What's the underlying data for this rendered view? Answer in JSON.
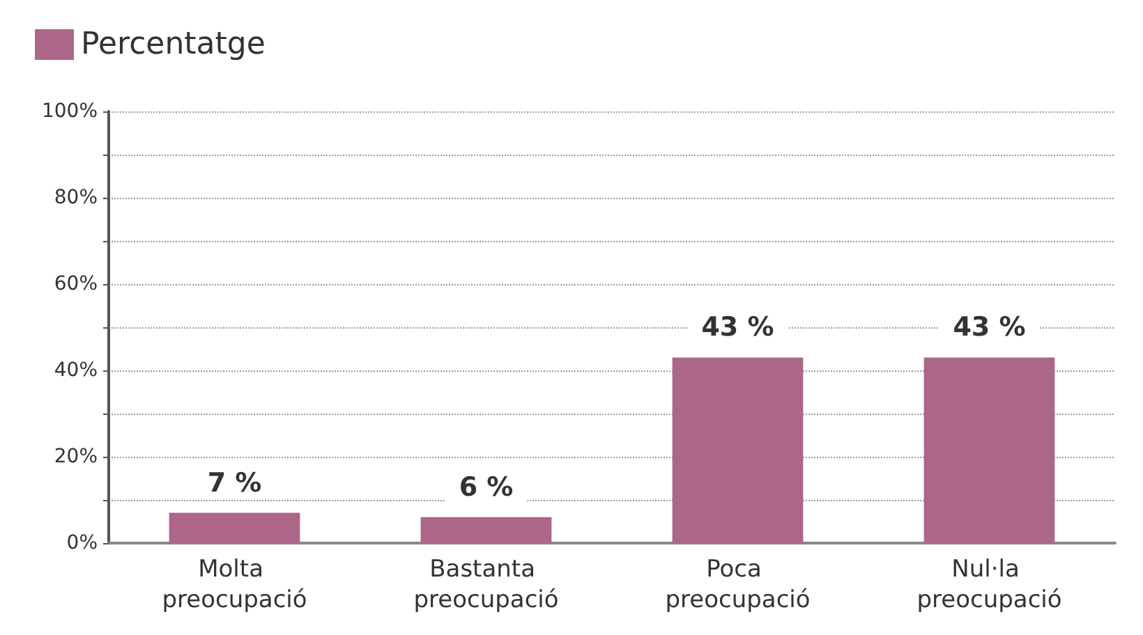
{
  "chart_data": {
    "type": "bar",
    "categories": [
      "Molta preocupació",
      "Bastanta preocupació",
      "Poca preocupació",
      "Nul·la preocupació"
    ],
    "series": [
      {
        "name": "Percentatge",
        "color": "#ab6688",
        "values": [
          7,
          6,
          43,
          43
        ],
        "value_labels": [
          "7 %",
          "6 %",
          "43 %",
          "43 %"
        ]
      }
    ],
    "ylim": [
      0,
      100
    ],
    "yticks": [
      {
        "value": 0,
        "label": "0%"
      },
      {
        "value": 10,
        "label": null
      },
      {
        "value": 20,
        "label": "20%"
      },
      {
        "value": 30,
        "label": null
      },
      {
        "value": 40,
        "label": "40%"
      },
      {
        "value": 50,
        "label": null
      },
      {
        "value": 60,
        "label": "60%"
      },
      {
        "value": 70,
        "label": null
      },
      {
        "value": 80,
        "label": "80%"
      },
      {
        "value": 90,
        "label": null
      },
      {
        "value": 100,
        "label": "100%"
      }
    ],
    "grid": "y",
    "legend": "top left"
  }
}
